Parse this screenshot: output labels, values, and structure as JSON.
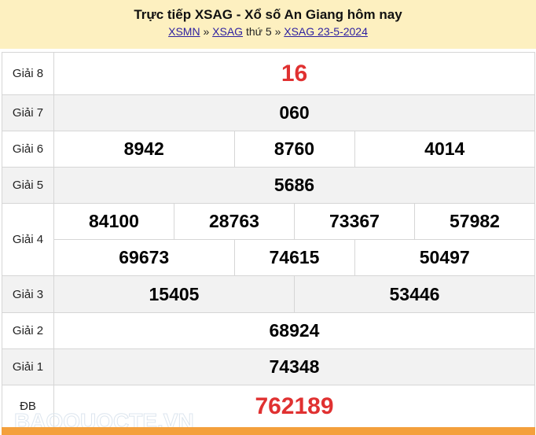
{
  "header": {
    "title": "Trực tiếp XSAG - Xổ số An Giang hôm nay",
    "breadcrumb": [
      {
        "label": "XSMN"
      },
      {
        "sep": "»"
      },
      {
        "label": "XSAG"
      },
      {
        "text": "thứ 5"
      },
      {
        "sep": "»"
      },
      {
        "label": "XSAG 23-5-2024"
      }
    ]
  },
  "results": {
    "g8": {
      "label": "Giải 8",
      "values": [
        "16"
      ]
    },
    "g7": {
      "label": "Giải 7",
      "values": [
        "060"
      ]
    },
    "g6": {
      "label": "Giải 6",
      "values": [
        "8942",
        "8760",
        "4014"
      ]
    },
    "g5": {
      "label": "Giải 5",
      "values": [
        "5686"
      ]
    },
    "g4": {
      "label": "Giải 4",
      "values": [
        "84100",
        "28763",
        "73367",
        "57982",
        "69673",
        "74615",
        "50497"
      ]
    },
    "g3": {
      "label": "Giải 3",
      "values": [
        "15405",
        "53446"
      ]
    },
    "g2": {
      "label": "Giải 2",
      "values": [
        "68924"
      ]
    },
    "g1": {
      "label": "Giải 1",
      "values": [
        "74348"
      ]
    },
    "db": {
      "label": "ĐB",
      "values": [
        "762189"
      ]
    }
  },
  "watermark": "BAOQUOCTE.VN",
  "colors": {
    "header_bg": "#fdf0c0",
    "highlight": "#e03131",
    "footer_bar": "#f4a03c"
  }
}
